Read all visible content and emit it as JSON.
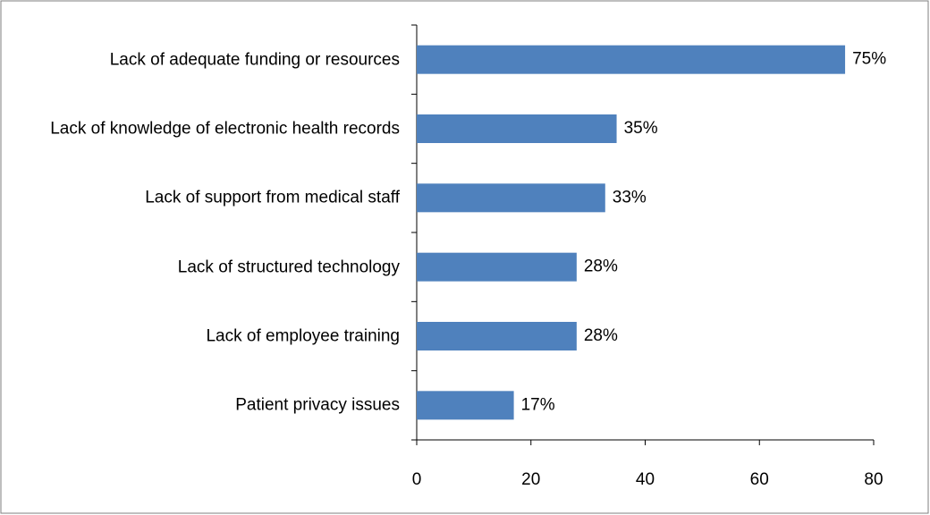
{
  "chart_data": {
    "type": "bar",
    "orientation": "horizontal",
    "categories": [
      "Lack of adequate funding or resources",
      "Lack of knowledge of electronic health records",
      "Lack of support from medical staff",
      "Lack of structured technology",
      "Lack of employee training",
      "Patient privacy issues"
    ],
    "values": [
      75,
      35,
      33,
      28,
      28,
      17
    ],
    "value_labels": [
      "75%",
      "35%",
      "33%",
      "28%",
      "28%",
      "17%"
    ],
    "color": "#4f81bd",
    "xlim": [
      0,
      80
    ],
    "xticks": [
      0,
      20,
      40,
      60,
      80
    ],
    "grid": false
  }
}
